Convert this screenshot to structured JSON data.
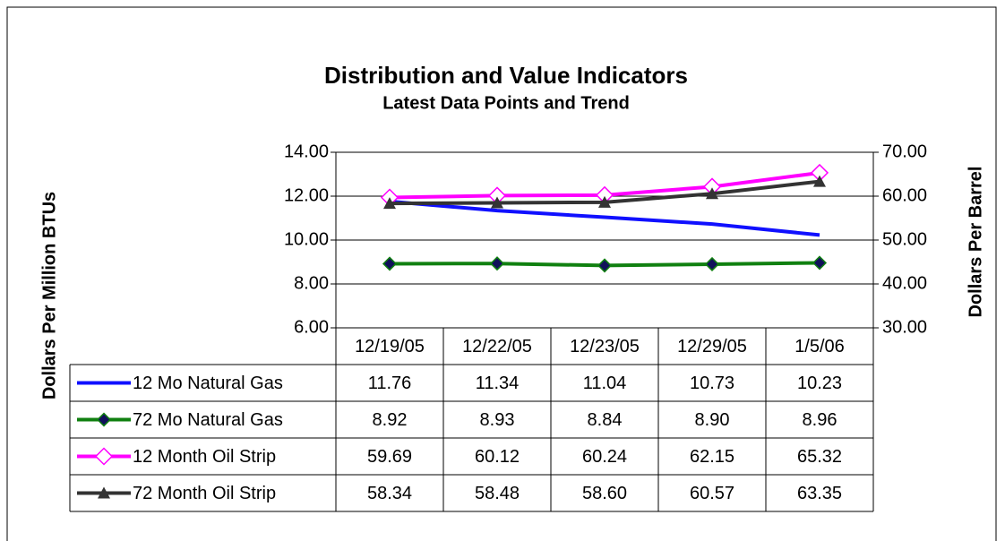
{
  "chart_data": {
    "type": "line",
    "title": "Distribution and Value Indicators",
    "subtitle": "Latest Data Points and Trend",
    "y_label": "Dollars Per Million BTUs",
    "y2_label": "Dollars Per Barrel",
    "categories": [
      "12/19/05",
      "12/22/05",
      "12/23/05",
      "12/29/05",
      "1/5/06"
    ],
    "ylim": [
      6,
      14
    ],
    "yticks": [
      {
        "value": 6,
        "label": "6.00"
      },
      {
        "value": 8,
        "label": "8.00"
      },
      {
        "value": 10,
        "label": "10.00"
      },
      {
        "value": 12,
        "label": "12.00"
      },
      {
        "value": 14,
        "label": "14.00"
      }
    ],
    "y2lim": [
      30,
      70
    ],
    "y2ticks": [
      {
        "value": 30,
        "label": "30.00"
      },
      {
        "value": 40,
        "label": "40.00"
      },
      {
        "value": 50,
        "label": "50.00"
      },
      {
        "value": 60,
        "label": "60.00"
      },
      {
        "value": 70,
        "label": "70.00"
      }
    ],
    "grid": true,
    "series": [
      {
        "name": "12 Mo Natural Gas",
        "color": "#1010ff",
        "marker": "none",
        "values": [
          11.76,
          11.34,
          11.04,
          10.73,
          10.23
        ],
        "value_labels": [
          "11.76",
          "11.34",
          "11.04",
          "10.73",
          "10.23"
        ]
      },
      {
        "name": "72 Mo Natural Gas",
        "color": "#108010",
        "marker": "diamond",
        "values": [
          8.92,
          8.93,
          8.84,
          8.9,
          8.96
        ],
        "value_labels": [
          "8.92",
          "8.93",
          "8.84",
          "8.90",
          "8.96"
        ]
      },
      {
        "name": "12 Month Oil Strip",
        "color": "#ff00ff",
        "marker": "open-diamond",
        "axis": "y2",
        "values": [
          59.69,
          60.12,
          60.24,
          62.15,
          65.32
        ],
        "value_labels": [
          "59.69",
          "60.12",
          "60.24",
          "62.15",
          "65.32"
        ]
      },
      {
        "name": "72 Month Oil Strip",
        "color": "#333333",
        "marker": "triangle",
        "axis": "y2",
        "values": [
          58.34,
          58.48,
          58.6,
          60.57,
          63.35
        ],
        "value_labels": [
          "58.34",
          "58.48",
          "58.60",
          "60.57",
          "63.35"
        ]
      }
    ]
  }
}
